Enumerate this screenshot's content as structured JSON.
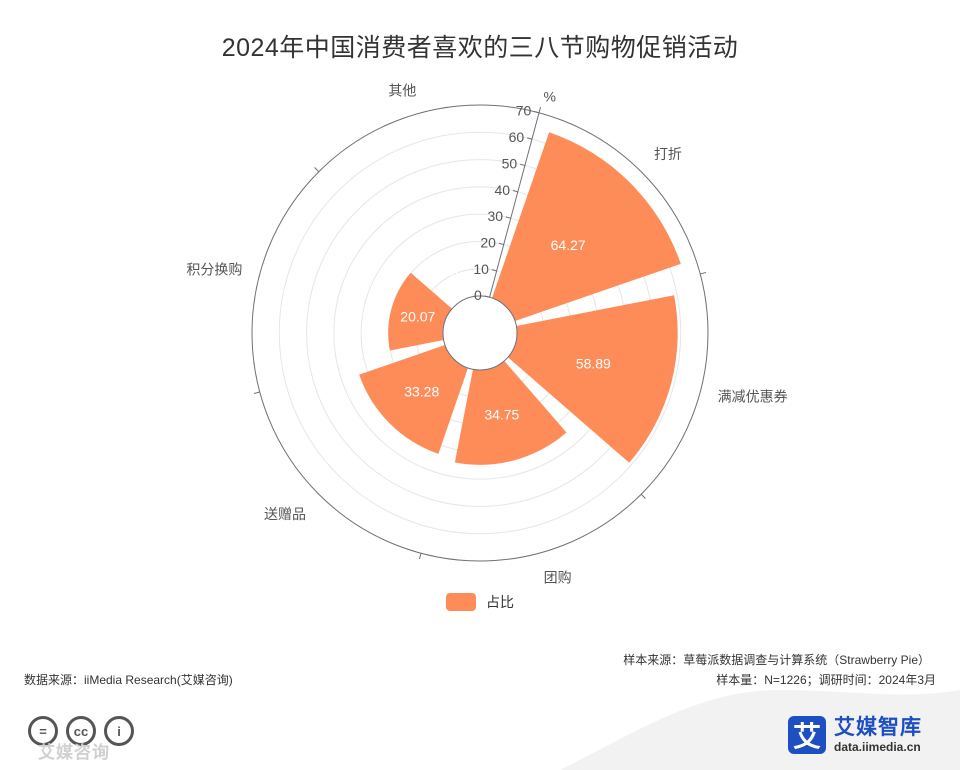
{
  "title": "2024年中国消费者喜欢的三八节购物促销活动",
  "legend": {
    "label": "占比"
  },
  "colors": {
    "series": "#fe8c59",
    "axis": "#6e7079",
    "grid": "#e6e6e6",
    "label": "#555555"
  },
  "chart_data": {
    "type": "polar-bar",
    "categories": [
      "打折",
      "满减优惠券",
      "团购",
      "送赠品",
      "积分换购",
      "其他"
    ],
    "series": [
      {
        "name": "占比",
        "values": [
          64.27,
          58.89,
          34.75,
          33.28,
          20.07,
          0.16
        ]
      }
    ],
    "radial_axis": {
      "min": 0,
      "max": 70,
      "interval": 10,
      "ticks": [
        "0",
        "10",
        "20",
        "30",
        "40",
        "50",
        "60",
        "70"
      ],
      "unit": "%"
    },
    "grid": true,
    "legend_position": "bottom-center"
  },
  "footer": {
    "data_source": "数据来源：iiMedia Research(艾媒咨询)",
    "sample_source": "样本来源：草莓派数据调查与计算系统（Strawberry Pie）",
    "sample_info": "样本量：N=1226；调研时间：2024年3月"
  },
  "watermark": "艾媒咨询",
  "cc_icons": [
    "=",
    "cc",
    "i"
  ],
  "brand": {
    "logo_char": "艾",
    "name": "艾媒智库",
    "url": "data.iimedia.cn"
  }
}
